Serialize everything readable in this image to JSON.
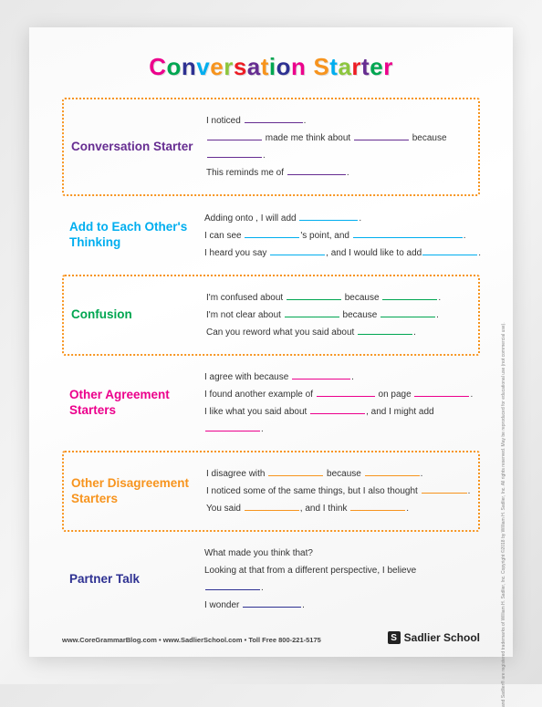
{
  "title": {
    "text": "Conversation Starter",
    "letter_colors": [
      "#ec008c",
      "#00a651",
      "#2e3192",
      "#00aeef",
      "#f7941e",
      "#8dc63e",
      "#ed1c24",
      "#662d91",
      "#f7941e",
      "#00a651",
      "#2e3192",
      "#ec008c",
      "#f7941e",
      "#00aeef",
      "#8dc63e",
      "#ed1c24",
      "#662d91",
      "#00a651",
      "#ec008c",
      "#2e3192"
    ]
  },
  "border_color": "#f7941e",
  "sections": [
    {
      "label": "Conversation Starter",
      "label_color": "#662d91",
      "boxed": true,
      "lines": [
        [
          {
            "t": "I noticed "
          },
          {
            "b": 64,
            "c": "#662d91"
          },
          {
            "t": "."
          }
        ],
        [
          {
            "b": 60,
            "c": "#662d91"
          },
          {
            "t": " made me think about "
          },
          {
            "b": 60,
            "c": "#662d91"
          },
          {
            "t": " because"
          }
        ],
        [
          {
            "b": 60,
            "c": "#662d91"
          },
          {
            "t": "."
          }
        ],
        [
          {
            "t": "This reminds me of "
          },
          {
            "b": 64,
            "c": "#662d91"
          },
          {
            "t": "."
          }
        ]
      ]
    },
    {
      "label": "Add to Each Other's Thinking",
      "label_color": "#00aeef",
      "boxed": false,
      "lines": [
        [
          {
            "t": "Adding onto , I will add "
          },
          {
            "b": 64,
            "c": "#00aeef"
          },
          {
            "t": "."
          }
        ],
        [
          {
            "t": "I can see "
          },
          {
            "b": 60,
            "c": "#00aeef"
          },
          {
            "t": "'s point, and "
          },
          {
            "b": 120,
            "c": "#00aeef"
          },
          {
            "t": "."
          }
        ],
        [
          {
            "t": "I heard you say "
          },
          {
            "b": 60,
            "c": "#00aeef"
          },
          {
            "t": ", and I would like to add"
          },
          {
            "b": 60,
            "c": "#00aeef"
          },
          {
            "t": "."
          }
        ]
      ]
    },
    {
      "label": "Confusion",
      "label_color": "#00a651",
      "boxed": true,
      "lines": [
        [
          {
            "t": "I'm confused about "
          },
          {
            "b": 60,
            "c": "#00a651"
          },
          {
            "t": " because "
          },
          {
            "b": 60,
            "c": "#00a651"
          },
          {
            "t": "."
          }
        ],
        [
          {
            "t": "I'm not clear about "
          },
          {
            "b": 60,
            "c": "#00a651"
          },
          {
            "t": " because "
          },
          {
            "b": 60,
            "c": "#00a651"
          },
          {
            "t": "."
          }
        ],
        [
          {
            "t": "Can you reword what you said about "
          },
          {
            "b": 60,
            "c": "#00a651"
          },
          {
            "t": "."
          }
        ]
      ]
    },
    {
      "label": "Other Agreement Starters",
      "label_color": "#ec008c",
      "boxed": false,
      "lines": [
        [
          {
            "t": "I agree with because "
          },
          {
            "b": 64,
            "c": "#ec008c"
          },
          {
            "t": "."
          }
        ],
        [
          {
            "t": "I found another example of "
          },
          {
            "b": 64,
            "c": "#ec008c"
          },
          {
            "t": " on page "
          },
          {
            "b": 60,
            "c": "#ec008c"
          },
          {
            "t": "."
          }
        ],
        [
          {
            "t": "I like what you said about "
          },
          {
            "b": 60,
            "c": "#ec008c"
          },
          {
            "t": ", and I might add"
          }
        ],
        [
          {
            "b": 60,
            "c": "#ec008c"
          },
          {
            "t": "."
          }
        ]
      ]
    },
    {
      "label": "Other Disagreement Starters",
      "label_color": "#f7941e",
      "boxed": true,
      "lines": [
        [
          {
            "t": "I disagree with "
          },
          {
            "b": 60,
            "c": "#f7941e"
          },
          {
            "t": " because "
          },
          {
            "b": 60,
            "c": "#f7941e"
          },
          {
            "t": "."
          }
        ],
        [
          {
            "t": "I noticed some of the same things, but I also thought "
          },
          {
            "b": 50,
            "c": "#f7941e"
          },
          {
            "t": "."
          }
        ],
        [
          {
            "t": "You said "
          },
          {
            "b": 60,
            "c": "#f7941e"
          },
          {
            "t": ", and I think "
          },
          {
            "b": 60,
            "c": "#f7941e"
          },
          {
            "t": "."
          }
        ]
      ]
    },
    {
      "label": "Partner Talk",
      "label_color": "#2e3192",
      "boxed": false,
      "lines": [
        [
          {
            "t": "What made you think that?"
          }
        ],
        [
          {
            "t": "Looking at that from a different perspective, I believe"
          }
        ],
        [
          {
            "b": 60,
            "c": "#2e3192"
          },
          {
            "t": "."
          }
        ],
        [
          {
            "t": "I wonder "
          },
          {
            "b": 64,
            "c": "#2e3192"
          },
          {
            "t": "."
          }
        ]
      ]
    }
  ],
  "footer": {
    "left": "www.CoreGrammarBlog.com • www.SadlierSchool.com • Toll Free 800-221-5175",
    "logo_text": "Sadlier School",
    "side": "and Sadlier® are registered trademarks of William H. Sadlier, Inc.   Copyright ©2018 by William H. Sadlier, Inc. All rights reserved.   May be reproduced for educational use (not commercial use)."
  }
}
